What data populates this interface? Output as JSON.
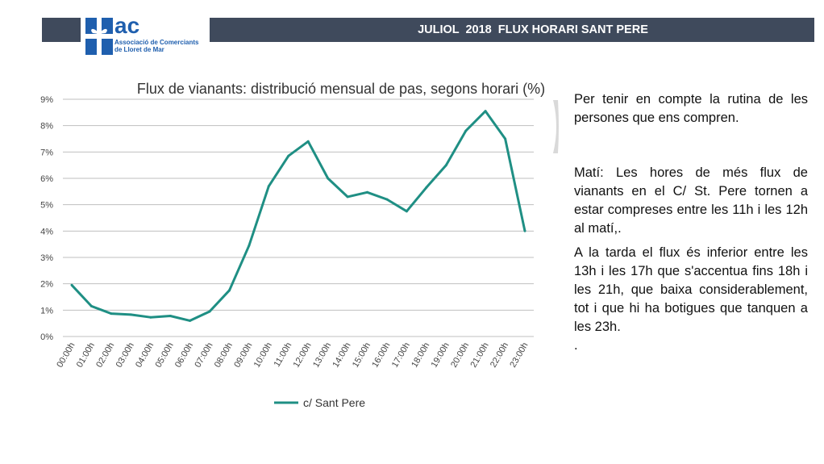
{
  "header": {
    "title": "JULIOL  2018  FLUX HORARI SANT PERE",
    "bar_color": "#3f4a5c"
  },
  "logo": {
    "icon": "gift-cross-icon",
    "text": "ac",
    "line1": "Associació de Comerciants",
    "line2": "de Lloret de Mar",
    "color": "#1f5fae"
  },
  "chart_data": {
    "type": "line",
    "title": "Flux de vianants: distribució mensual de pas, segons  horari (%)",
    "xlabel": "",
    "ylabel": "",
    "categories": [
      "00:00h",
      "01:00h",
      "02:00h",
      "03:00h",
      "04:00h",
      "05:00h",
      "06:00h",
      "07:00h",
      "08:00h",
      "09:00h",
      "10:00h",
      "11:00h",
      "12:00h",
      "13:00h",
      "14:00h",
      "15:00h",
      "16:00h",
      "17:00h",
      "18:00h",
      "19:00h",
      "20:00h",
      "21:00h",
      "22:00h",
      "23:00h"
    ],
    "series": [
      {
        "name": "c/ Sant Pere",
        "color": "#1f8f84",
        "values": [
          1.95,
          1.15,
          0.87,
          0.83,
          0.73,
          0.78,
          0.6,
          0.95,
          1.75,
          3.45,
          5.7,
          6.85,
          7.4,
          6.0,
          5.3,
          5.47,
          5.2,
          4.75,
          5.65,
          6.5,
          7.8,
          8.55,
          7.5,
          4.0
        ]
      }
    ],
    "ylim": [
      0,
      9
    ],
    "yticks": [
      0,
      1,
      2,
      3,
      4,
      5,
      6,
      7,
      8,
      9
    ],
    "ytick_labels": [
      "0%",
      "1%",
      "2%",
      "3%",
      "4%",
      "5%",
      "6%",
      "7%",
      "8%",
      "9%"
    ],
    "grid": true,
    "legend": "bottom"
  },
  "text": {
    "p1": "Per tenir en compte la rutina de les persones que ens compren.",
    "p2": "Matí: Les hores de més flux de vianants en el C/ St. Pere tornen a estar compreses  entre les 11h i les 12h al matí,.",
    "p3": "A la tarda el flux és inferior entre les 13h i les 17h que  s'accentua fins 18h i les 21h, que baixa considerablement, tot i que hi ha botigues  que tanquen a les 23h.",
    "p4": "."
  }
}
